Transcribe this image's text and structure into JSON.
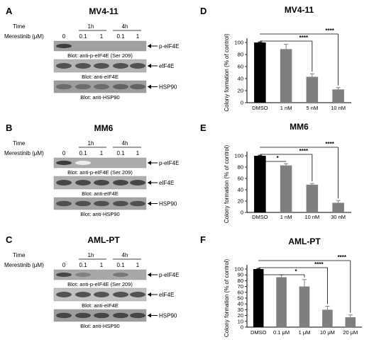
{
  "westerns": [
    {
      "panel": "A",
      "title": "MV4-11",
      "time_label": "Time",
      "drug_label": "Merestinib (μM)",
      "times": [
        "1h",
        "4h"
      ],
      "doses": [
        "0",
        "0.1",
        "1",
        "0.1",
        "1"
      ],
      "blots": [
        {
          "target": "p-eIF4E",
          "caption": "Blot: anti-p-eIF4E (Ser 209)",
          "bands": [
            0.95,
            0.0,
            0.0,
            0.0,
            0.0
          ],
          "bg": 0.82
        },
        {
          "target": "eIF4E",
          "caption": "Blot: anti-eIF4E",
          "bands": [
            0.85,
            0.85,
            0.85,
            0.85,
            0.85
          ],
          "bg": 0.65
        },
        {
          "target": "HSP90",
          "caption": "Blot: anti-HSP90",
          "bands": [
            0.7,
            0.7,
            0.7,
            0.75,
            0.75
          ],
          "bg": 0.85
        }
      ]
    },
    {
      "panel": "B",
      "title": "MM6",
      "time_label": "Time",
      "drug_label": "Merestinib (μM)",
      "times": [
        "1h",
        "4h"
      ],
      "doses": [
        "0",
        "0.1",
        "1",
        "0.1",
        "1"
      ],
      "blots": [
        {
          "target": "p-eIF4E",
          "caption": "Blot: anti-p-eIF4E (Ser 209)",
          "bands": [
            0.95,
            0.05,
            0.0,
            0.0,
            0.0
          ],
          "bg": 0.72
        },
        {
          "target": "eIF4E",
          "caption": "Blot: anti-eIF4E",
          "bands": [
            0.9,
            0.9,
            0.9,
            0.9,
            0.9
          ],
          "bg": 0.7
        },
        {
          "target": "HSP90",
          "caption": "Blot: anti-HSP90",
          "bands": [
            0.85,
            0.85,
            0.85,
            0.85,
            0.85
          ],
          "bg": 0.8
        }
      ]
    },
    {
      "panel": "C",
      "title": "AML-PT",
      "time_label": "Time",
      "drug_label": "Merestinib (μM)",
      "times": [
        "1h",
        "4h"
      ],
      "doses": [
        "0",
        "0.1",
        "1",
        "0.1",
        "1"
      ],
      "blots": [
        {
          "target": "p-eIF4E",
          "caption": "Blot: anti-p-eIF4E (Ser 209)",
          "bands": [
            0.9,
            0.6,
            0.4,
            0.65,
            0.4
          ],
          "bg": 0.75
        },
        {
          "target": "eIF4E",
          "caption": "Blot: anti-eIF4E",
          "bands": [
            0.85,
            0.85,
            0.85,
            0.85,
            0.85
          ],
          "bg": 0.55
        },
        {
          "target": "HSP90",
          "caption": "Blot: anti-HSP90",
          "bands": [
            0.9,
            0.9,
            0.9,
            0.9,
            0.9
          ],
          "bg": 0.85
        }
      ]
    }
  ],
  "chart_data": [
    {
      "panel": "D",
      "type": "bar",
      "title": "MV4-11",
      "ylabel": "Colony formation (% of control)",
      "xlabel": "",
      "ylim": [
        0,
        100
      ],
      "yticks": [
        0,
        20,
        40,
        60,
        80,
        100
      ],
      "categories": [
        "DMSO",
        "1 nM",
        "5 nM",
        "10 nM"
      ],
      "values": [
        100,
        89,
        43,
        22
      ],
      "errors": [
        1,
        8,
        5,
        3
      ],
      "colors": [
        "#000000",
        "#7f7f7f",
        "#7f7f7f",
        "#7f7f7f"
      ],
      "significance": [
        {
          "from": 0,
          "to": 3,
          "label": "****"
        },
        {
          "from": 0,
          "to": 2,
          "label": "****"
        }
      ]
    },
    {
      "panel": "E",
      "type": "bar",
      "title": "MM6",
      "ylabel": "Colony formation (% of control)",
      "xlabel": "",
      "ylim": [
        0,
        100
      ],
      "yticks": [
        0,
        20,
        40,
        60,
        80,
        100
      ],
      "categories": [
        "DMSO",
        "1 nM",
        "10 nM",
        "30 nM"
      ],
      "values": [
        100,
        83,
        49,
        17
      ],
      "errors": [
        1,
        3,
        2,
        4
      ],
      "colors": [
        "#000000",
        "#7f7f7f",
        "#7f7f7f",
        "#7f7f7f"
      ],
      "significance": [
        {
          "from": 0,
          "to": 3,
          "label": "****"
        },
        {
          "from": 0,
          "to": 2,
          "label": "****"
        },
        {
          "from": 0,
          "to": 1,
          "label": "*"
        }
      ]
    },
    {
      "panel": "F",
      "type": "bar",
      "title": "AML-PT",
      "ylabel": "Colony formation (% of control)",
      "xlabel": "",
      "ylim": [
        0,
        100
      ],
      "yticks": [
        0,
        10,
        20,
        30,
        40,
        50,
        60,
        70,
        80,
        90,
        100
      ],
      "categories": [
        "DMSO",
        "0.1 μM",
        "1 μM",
        "10 μM",
        "20 μM"
      ],
      "values": [
        100,
        86,
        70,
        30,
        17
      ],
      "errors": [
        1,
        4,
        12,
        6,
        4
      ],
      "colors": [
        "#000000",
        "#7f7f7f",
        "#7f7f7f",
        "#7f7f7f",
        "#7f7f7f"
      ],
      "significance": [
        {
          "from": 0,
          "to": 4,
          "label": "****"
        },
        {
          "from": 0,
          "to": 3,
          "label": "****"
        },
        {
          "from": 0,
          "to": 2,
          "label": "*"
        }
      ]
    }
  ]
}
